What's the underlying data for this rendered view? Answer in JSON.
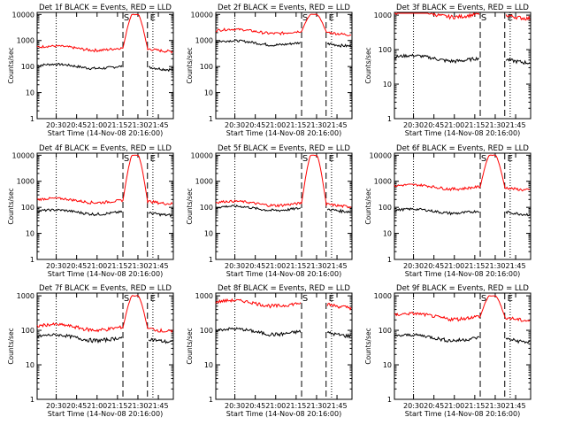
{
  "chart_data": [
    {
      "type": "line",
      "title": "Det 1f BLACK = Events, RED = LLD",
      "ylabel": "Counts/sec",
      "xlabel": "Start Time (14-Nov-08 20:16:00)",
      "x_ticks": [
        "20:30",
        "20:45",
        "21:00",
        "21:15",
        "21:30",
        "21:45"
      ],
      "y_ticks": [
        "1",
        "10",
        "100",
        "1000",
        "10000"
      ],
      "yscale": "log",
      "ylim": [
        1,
        12000
      ],
      "x_range_minutes": [
        0,
        100
      ],
      "markers": [
        "S",
        "E"
      ],
      "series": [
        {
          "color": "#000000",
          "baseline": 100,
          "peak": null
        },
        {
          "color": "#ff0000",
          "baseline": 500,
          "peak": 10000
        }
      ]
    },
    {
      "type": "line",
      "title": "Det 2f BLACK = Events, RED = LLD",
      "ylabel": "Counts/sec",
      "xlabel": "Start Time (14-Nov-08 20:16:00)",
      "x_ticks": [
        "20:30",
        "20:45",
        "21:00",
        "21:15",
        "21:30",
        "21:45"
      ],
      "y_ticks": [
        "1",
        "10",
        "100",
        "1000",
        "10000"
      ],
      "yscale": "log",
      "ylim": [
        1,
        12000
      ],
      "x_range_minutes": [
        0,
        100
      ],
      "markers": [
        "S",
        "E"
      ],
      "series": [
        {
          "color": "#000000",
          "baseline": 800,
          "peak": null
        },
        {
          "color": "#ff0000",
          "baseline": 2200,
          "peak": 10000
        }
      ]
    },
    {
      "type": "line",
      "title": "Det 3f BLACK = Events, RED = LLD",
      "ylabel": "Counts/sec",
      "xlabel": "Start Time (14-Nov-08 20:16:00)",
      "x_ticks": [
        "20:30",
        "20:45",
        "21:00",
        "21:15",
        "21:30",
        "21:45"
      ],
      "y_ticks": [
        "1",
        "10",
        "100",
        "1000"
      ],
      "yscale": "log",
      "ylim": [
        1,
        1200
      ],
      "x_range_minutes": [
        0,
        100
      ],
      "markers": [
        "S",
        "E"
      ],
      "series": [
        {
          "color": "#000000",
          "baseline": 55,
          "peak": null
        },
        {
          "color": "#ff0000",
          "baseline": 1050,
          "peak": null
        }
      ]
    },
    {
      "type": "line",
      "title": "Det 4f BLACK = Events, RED = LLD",
      "ylabel": "Counts/sec",
      "xlabel": "Start Time (14-Nov-08 20:16:00)",
      "x_ticks": [
        "20:30",
        "20:45",
        "21:00",
        "21:15",
        "21:30",
        "21:45"
      ],
      "y_ticks": [
        "1",
        "10",
        "100",
        "1000",
        "10000"
      ],
      "yscale": "log",
      "ylim": [
        1,
        12000
      ],
      "x_range_minutes": [
        0,
        100
      ],
      "markers": [
        "S",
        "E"
      ],
      "series": [
        {
          "color": "#000000",
          "baseline": 65,
          "peak": null
        },
        {
          "color": "#ff0000",
          "baseline": 180,
          "peak": 10000
        }
      ]
    },
    {
      "type": "line",
      "title": "Det 5f BLACK = Events, RED = LLD",
      "ylabel": "Counts/sec",
      "xlabel": "Start Time (14-Nov-08 20:16:00)",
      "x_ticks": [
        "20:30",
        "20:45",
        "21:00",
        "21:15",
        "21:30",
        "21:45"
      ],
      "y_ticks": [
        "1",
        "10",
        "100",
        "1000",
        "10000"
      ],
      "yscale": "log",
      "ylim": [
        1,
        12000
      ],
      "x_range_minutes": [
        0,
        100
      ],
      "markers": [
        "S",
        "E"
      ],
      "series": [
        {
          "color": "#000000",
          "baseline": 90,
          "peak": null
        },
        {
          "color": "#ff0000",
          "baseline": 140,
          "peak": 10000
        }
      ]
    },
    {
      "type": "line",
      "title": "Det 6f BLACK = Events, RED = LLD",
      "ylabel": "Counts/sec",
      "xlabel": "Start Time (14-Nov-08 20:16:00)",
      "x_ticks": [
        "20:30",
        "20:45",
        "21:00",
        "21:15",
        "21:30",
        "21:45"
      ],
      "y_ticks": [
        "1",
        "10",
        "100",
        "1000",
        "10000"
      ],
      "yscale": "log",
      "ylim": [
        1,
        12000
      ],
      "x_range_minutes": [
        0,
        100
      ],
      "markers": [
        "S",
        "E"
      ],
      "series": [
        {
          "color": "#000000",
          "baseline": 70,
          "peak": null
        },
        {
          "color": "#ff0000",
          "baseline": 600,
          "peak": 10000
        }
      ]
    },
    {
      "type": "line",
      "title": "Det 7f BLACK = Events, RED = LLD",
      "ylabel": "Counts/sec",
      "xlabel": "Start Time (14-Nov-08 20:16:00)",
      "x_ticks": [
        "20:30",
        "20:45",
        "21:00",
        "21:15",
        "21:30",
        "21:45"
      ],
      "y_ticks": [
        "1",
        "10",
        "100",
        "1000"
      ],
      "yscale": "log",
      "ylim": [
        1,
        1200
      ],
      "x_range_minutes": [
        0,
        100
      ],
      "markers": [
        "S",
        "E"
      ],
      "series": [
        {
          "color": "#000000",
          "baseline": 60,
          "peak": null
        },
        {
          "color": "#ff0000",
          "baseline": 120,
          "peak": 1000
        }
      ]
    },
    {
      "type": "line",
      "title": "Det 8f BLACK = Events, RED = LLD",
      "ylabel": "Counts/sec",
      "xlabel": "Start Time (14-Nov-08 20:16:00)",
      "x_ticks": [
        "20:30",
        "20:45",
        "21:00",
        "21:15",
        "21:30",
        "21:45"
      ],
      "y_ticks": [
        "1",
        "10",
        "100",
        "1000"
      ],
      "yscale": "log",
      "ylim": [
        1,
        1200
      ],
      "x_range_minutes": [
        0,
        100
      ],
      "markers": [
        "S",
        "E"
      ],
      "series": [
        {
          "color": "#000000",
          "baseline": 90,
          "peak": null
        },
        {
          "color": "#ff0000",
          "baseline": 600,
          "peak": null
        }
      ]
    },
    {
      "type": "line",
      "title": "Det 9f BLACK = Events, RED = LLD",
      "ylabel": "Counts/sec",
      "xlabel": "Start Time (14-Nov-08 20:16:00)",
      "x_ticks": [
        "20:30",
        "20:45",
        "21:00",
        "21:15",
        "21:30",
        "21:45"
      ],
      "y_ticks": [
        "1",
        "10",
        "100",
        "1000"
      ],
      "yscale": "log",
      "ylim": [
        1,
        1200
      ],
      "x_range_minutes": [
        0,
        100
      ],
      "markers": [
        "S",
        "E"
      ],
      "series": [
        {
          "color": "#000000",
          "baseline": 60,
          "peak": null
        },
        {
          "color": "#ff0000",
          "baseline": 250,
          "peak": 1000
        }
      ]
    }
  ]
}
